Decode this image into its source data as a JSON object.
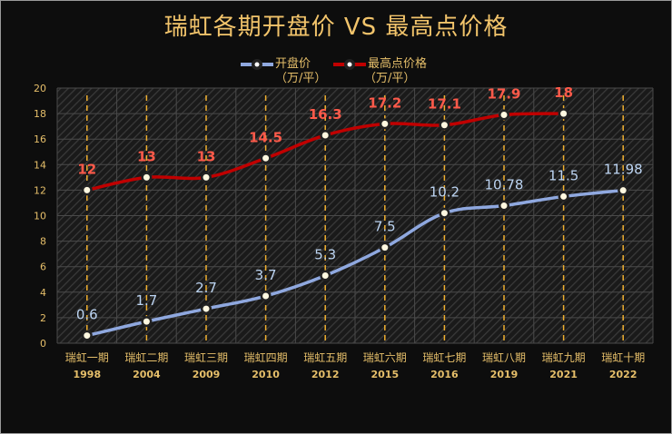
{
  "chart_data": {
    "type": "line",
    "title": "瑞虹各期开盘价 VS 最高点价格",
    "categories": [
      "瑞虹一期",
      "瑞虹二期",
      "瑞虹三期",
      "瑞虹四期",
      "瑞虹五期",
      "瑞虹六期",
      "瑞虹七期",
      "瑞虹八期",
      "瑞虹九期",
      "瑞虹十期"
    ],
    "years": [
      "1998",
      "2004",
      "2009",
      "2010",
      "2012",
      "2015",
      "2016",
      "2019",
      "2021",
      "2022"
    ],
    "series": [
      {
        "name": "开盘价",
        "unit": "（万/平）",
        "color": "#8fa8df",
        "label_color": "#bcd4f2",
        "values": [
          0.6,
          1.7,
          2.7,
          3.7,
          5.3,
          7.5,
          10.2,
          10.78,
          11.5,
          11.98
        ],
        "labels": [
          "0.6",
          "1.7",
          "2.7",
          "3.7",
          "5.3",
          "7.5",
          "10.2",
          "10.78",
          "11.5",
          "11.98"
        ]
      },
      {
        "name": "最高点价格",
        "unit": "（万/平）",
        "color": "#c00000",
        "label_color": "#ff5a4a",
        "values": [
          12,
          13,
          13,
          14.5,
          16.3,
          17.2,
          17.1,
          17.9,
          18,
          null
        ],
        "labels": [
          "12",
          "13",
          "13",
          "14.5",
          "16.3",
          "17.2",
          "17.1",
          "17.9",
          "18",
          ""
        ]
      }
    ],
    "ylim": [
      0,
      20
    ],
    "yticks": [
      0,
      2,
      4,
      6,
      8,
      10,
      12,
      14,
      16,
      18,
      20
    ],
    "grid": true,
    "legend": "top",
    "drop_line_color": "#f0b030",
    "text_color": "#e6bf6a"
  }
}
